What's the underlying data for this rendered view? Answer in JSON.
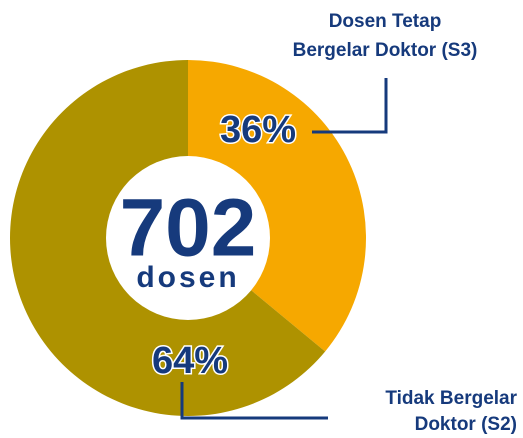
{
  "chart_data": {
    "type": "donut",
    "categories": [
      [
        "Dosen Tetap",
        "Bergelar Doktor (S3)"
      ],
      [
        "Tidak Bergelar",
        "Doktor (S2)"
      ]
    ],
    "values": [
      36,
      64
    ],
    "value_labels": [
      "36%",
      "64%"
    ],
    "colors": [
      "#f6a800",
      "#ae9200"
    ],
    "center_value": "702",
    "center_label": "dosen"
  }
}
